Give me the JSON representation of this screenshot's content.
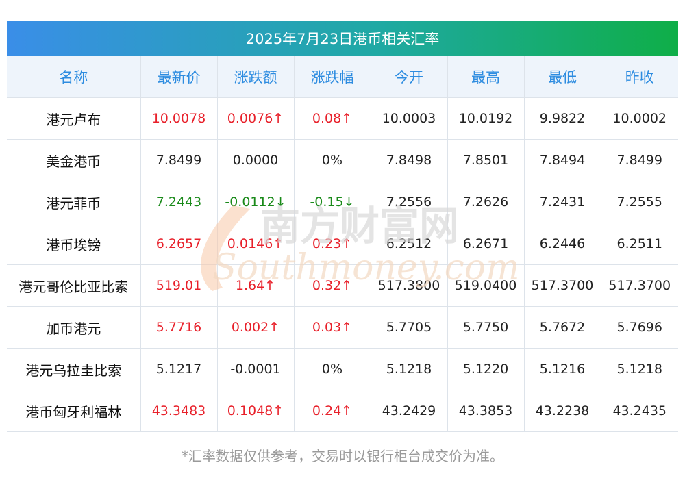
{
  "title": "2025年7月23日港币相关汇率",
  "headers": [
    "名称",
    "最新价",
    "涨跌额",
    "涨跌幅",
    "今开",
    "最高",
    "最低",
    "昨收"
  ],
  "rows": [
    {
      "name": "港元卢布",
      "latest": "10.0078",
      "change": "0.0076↑",
      "pct": "0.08↑",
      "open": "10.0003",
      "high": "10.0192",
      "low": "9.9822",
      "prev": "10.0002",
      "trend": "up"
    },
    {
      "name": "美金港币",
      "latest": "7.8499",
      "change": "0.0000",
      "pct": "0%",
      "open": "7.8498",
      "high": "7.8501",
      "low": "7.8494",
      "prev": "7.8499",
      "trend": "flat"
    },
    {
      "name": "港元菲币",
      "latest": "7.2443",
      "change": "-0.0112↓",
      "pct": "-0.15↓",
      "open": "7.2556",
      "high": "7.2626",
      "low": "7.2431",
      "prev": "7.2555",
      "trend": "down"
    },
    {
      "name": "港币埃镑",
      "latest": "6.2657",
      "change": "0.0146↑",
      "pct": "0.23↑",
      "open": "6.2512",
      "high": "6.2671",
      "low": "6.2446",
      "prev": "6.2511",
      "trend": "up"
    },
    {
      "name": "港元哥伦比亚比索",
      "latest": "519.01",
      "change": "1.64↑",
      "pct": "0.32↑",
      "open": "517.3800",
      "high": "519.0400",
      "low": "517.3700",
      "prev": "517.3700",
      "trend": "up"
    },
    {
      "name": "加币港元",
      "latest": "5.7716",
      "change": "0.002↑",
      "pct": "0.03↑",
      "open": "5.7705",
      "high": "5.7750",
      "low": "5.7672",
      "prev": "5.7696",
      "trend": "up"
    },
    {
      "name": "港元乌拉圭比索",
      "latest": "5.1217",
      "change": "-0.0001",
      "pct": "0%",
      "open": "5.1218",
      "high": "5.1220",
      "low": "5.1216",
      "prev": "5.1218",
      "trend": "flat"
    },
    {
      "name": "港币匈牙利福林",
      "latest": "43.3483",
      "change": "0.1048↑",
      "pct": "0.24↑",
      "open": "43.2429",
      "high": "43.3853",
      "low": "43.2238",
      "prev": "43.2435",
      "trend": "up"
    }
  ],
  "footnote": "*汇率数据仅供参考，交易时以银行柜台成交价为准。",
  "watermark": {
    "cn": "南方财富网",
    "en": "Southmoney.com"
  },
  "colors": {
    "up": "#e8202a",
    "down": "#1a8a1a",
    "header_text": "#2d8ce0"
  }
}
